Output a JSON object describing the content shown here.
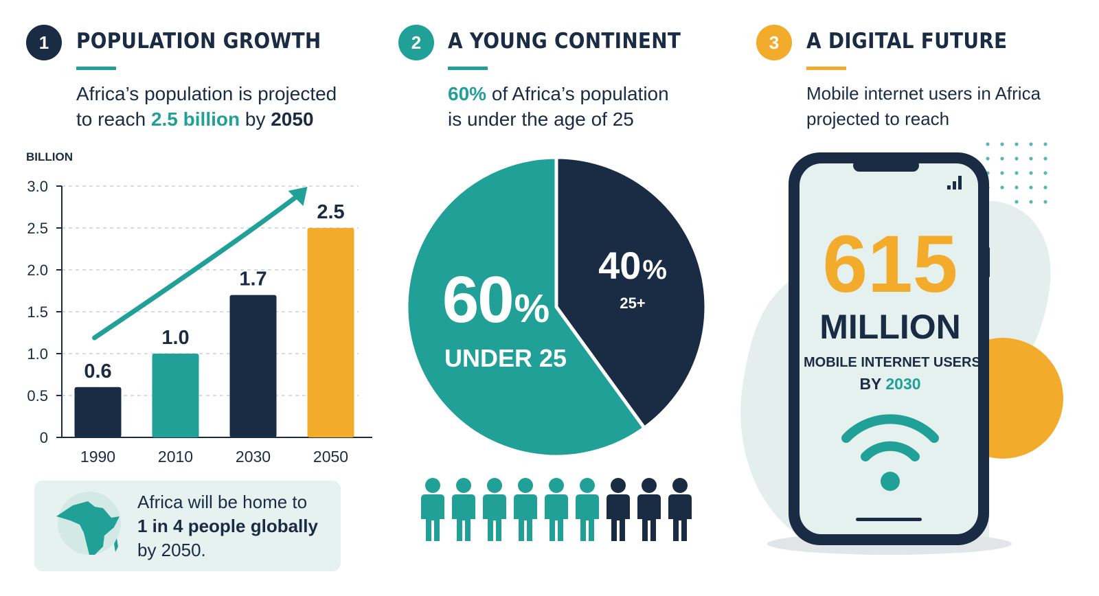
{
  "colors": {
    "dark": "#1a2b44",
    "teal": "#21a097",
    "orange": "#f2ab2a",
    "light_teal": "#e5f2f0"
  },
  "sections": [
    {
      "number": "1",
      "title": "POPULATION GROWTH",
      "intro_line1": "Africa’s population is projected",
      "intro_line2_pre": "to reach ",
      "intro_highlight": "2.5 billion",
      "intro_line2_mid": " by ",
      "intro_year": "2050"
    },
    {
      "number": "2",
      "title": "A YOUNG CONTINENT",
      "intro_highlight": "60%",
      "intro_line1_rest": " of Africa’s population",
      "intro_line2": "is under the age of 25"
    },
    {
      "number": "3",
      "title": "A DIGITAL FUTURE",
      "intro_line1": "Mobile internet users in Africa",
      "intro_line2": "projected to reach"
    }
  ],
  "chart_data": [
    {
      "type": "bar",
      "ylabel": "BILLION",
      "categories": [
        "1990",
        "2010",
        "2030",
        "2050"
      ],
      "values": [
        0.6,
        1.0,
        1.7,
        2.5
      ],
      "value_labels": [
        "0.6",
        "1.0",
        "1.7",
        "2.5"
      ],
      "bar_colors": [
        "#1a2b44",
        "#21a097",
        "#1a2b44",
        "#f2ab2a"
      ],
      "ylim": [
        0,
        3.0
      ],
      "yticks": [
        0,
        0.5,
        1.0,
        1.5,
        2.0,
        2.5,
        3.0
      ],
      "ytick_labels": [
        "0",
        "0.5",
        "1.0",
        "1.5",
        "2.0",
        "2.5",
        "3.0"
      ],
      "grid": true,
      "trend_arrow": true
    },
    {
      "type": "pie",
      "slices": [
        {
          "value": 60,
          "pct_label": "60",
          "pct_sign": "%",
          "caption": "UNDER 25",
          "color": "#21a097"
        },
        {
          "value": 40,
          "pct_label": "40",
          "pct_sign": "%",
          "caption": "25+",
          "color": "#1a2b44"
        }
      ],
      "people_icons": {
        "teal": 6,
        "dark": 3
      }
    }
  ],
  "callout": {
    "line1": "Africa will be home to",
    "line2": "1 in 4 people globally",
    "line3": "by 2050."
  },
  "digital": {
    "big_number": "615",
    "unit": "MILLION",
    "caption_line1": "MOBILE INTERNET USERS",
    "caption_by": "BY ",
    "caption_year": "2030"
  }
}
